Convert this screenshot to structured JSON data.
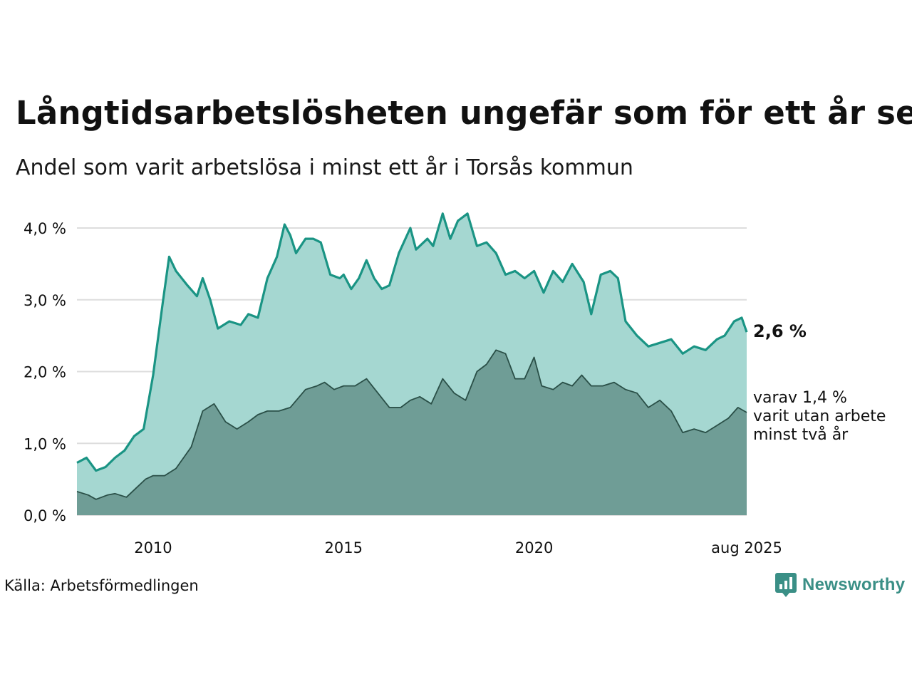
{
  "header": {
    "title": "Långtidsarbetslösheten ungefär som för ett år sen",
    "subtitle": "Andel som varit arbetslösa i minst ett år i Torsås kommun"
  },
  "footer": {
    "source": "Källa: Arbetsförmedlingen",
    "brand": "Newsworthy"
  },
  "annotations": {
    "main_end": "2,6 %",
    "sub_end_line1": "varav 1,4 %",
    "sub_end_line2": "varit utan arbete",
    "sub_end_line3": "minst två år"
  },
  "colors": {
    "main_line": "#1a9484",
    "main_fill": "#a5d7d1",
    "sub_line": "#2a4f47",
    "sub_fill": "#6f9d96",
    "grid": "#dddddd",
    "brand": "#3a8f86"
  },
  "chart_data": {
    "type": "area",
    "y_ticks": [
      "0,0 %",
      "1,0 %",
      "2,0 %",
      "3,0 %",
      "4,0 %"
    ],
    "ylim": [
      0,
      4.3
    ],
    "x_ticks": [
      "2010",
      "2015",
      "2020",
      "aug 2025"
    ],
    "x_tick_values": [
      2010.0,
      2015.0,
      2020.0,
      2025.58
    ],
    "xlim": [
      2008.0,
      2025.58
    ],
    "grid": true,
    "series": [
      {
        "key": "over_1_year",
        "points": [
          [
            2008.0,
            0.73
          ],
          [
            2008.25,
            0.8
          ],
          [
            2008.5,
            0.62
          ],
          [
            2008.75,
            0.67
          ],
          [
            2009.0,
            0.8
          ],
          [
            2009.25,
            0.9
          ],
          [
            2009.5,
            1.1
          ],
          [
            2009.75,
            1.2
          ],
          [
            2010.0,
            1.95
          ],
          [
            2010.25,
            2.95
          ],
          [
            2010.42,
            3.6
          ],
          [
            2010.6,
            3.4
          ],
          [
            2010.9,
            3.2
          ],
          [
            2011.15,
            3.05
          ],
          [
            2011.3,
            3.3
          ],
          [
            2011.5,
            3.0
          ],
          [
            2011.7,
            2.6
          ],
          [
            2012.0,
            2.7
          ],
          [
            2012.3,
            2.65
          ],
          [
            2012.5,
            2.8
          ],
          [
            2012.75,
            2.75
          ],
          [
            2013.0,
            3.3
          ],
          [
            2013.25,
            3.6
          ],
          [
            2013.45,
            4.05
          ],
          [
            2013.6,
            3.9
          ],
          [
            2013.75,
            3.65
          ],
          [
            2014.0,
            3.85
          ],
          [
            2014.2,
            3.85
          ],
          [
            2014.4,
            3.8
          ],
          [
            2014.65,
            3.35
          ],
          [
            2014.9,
            3.3
          ],
          [
            2015.0,
            3.35
          ],
          [
            2015.2,
            3.15
          ],
          [
            2015.4,
            3.3
          ],
          [
            2015.6,
            3.55
          ],
          [
            2015.8,
            3.3
          ],
          [
            2016.0,
            3.15
          ],
          [
            2016.2,
            3.2
          ],
          [
            2016.45,
            3.65
          ],
          [
            2016.75,
            4.0
          ],
          [
            2016.9,
            3.7
          ],
          [
            2017.2,
            3.85
          ],
          [
            2017.35,
            3.75
          ],
          [
            2017.6,
            4.2
          ],
          [
            2017.8,
            3.85
          ],
          [
            2018.0,
            4.1
          ],
          [
            2018.25,
            4.2
          ],
          [
            2018.5,
            3.75
          ],
          [
            2018.75,
            3.8
          ],
          [
            2019.0,
            3.65
          ],
          [
            2019.25,
            3.35
          ],
          [
            2019.5,
            3.4
          ],
          [
            2019.75,
            3.3
          ],
          [
            2020.0,
            3.4
          ],
          [
            2020.25,
            3.1
          ],
          [
            2020.5,
            3.4
          ],
          [
            2020.75,
            3.25
          ],
          [
            2021.0,
            3.5
          ],
          [
            2021.3,
            3.25
          ],
          [
            2021.5,
            2.8
          ],
          [
            2021.75,
            3.35
          ],
          [
            2022.0,
            3.4
          ],
          [
            2022.2,
            3.3
          ],
          [
            2022.4,
            2.7
          ],
          [
            2022.7,
            2.5
          ],
          [
            2023.0,
            2.35
          ],
          [
            2023.3,
            2.4
          ],
          [
            2023.6,
            2.45
          ],
          [
            2023.9,
            2.25
          ],
          [
            2024.2,
            2.35
          ],
          [
            2024.5,
            2.3
          ],
          [
            2024.8,
            2.45
          ],
          [
            2025.0,
            2.5
          ],
          [
            2025.25,
            2.7
          ],
          [
            2025.45,
            2.75
          ],
          [
            2025.58,
            2.55
          ]
        ]
      },
      {
        "key": "over_2_years",
        "points": [
          [
            2008.0,
            0.33
          ],
          [
            2008.3,
            0.28
          ],
          [
            2008.5,
            0.22
          ],
          [
            2008.8,
            0.28
          ],
          [
            2009.0,
            0.3
          ],
          [
            2009.3,
            0.25
          ],
          [
            2009.5,
            0.35
          ],
          [
            2009.8,
            0.5
          ],
          [
            2010.0,
            0.55
          ],
          [
            2010.3,
            0.55
          ],
          [
            2010.6,
            0.65
          ],
          [
            2011.0,
            0.95
          ],
          [
            2011.3,
            1.45
          ],
          [
            2011.6,
            1.55
          ],
          [
            2011.9,
            1.3
          ],
          [
            2012.2,
            1.2
          ],
          [
            2012.5,
            1.3
          ],
          [
            2012.75,
            1.4
          ],
          [
            2013.0,
            1.45
          ],
          [
            2013.3,
            1.45
          ],
          [
            2013.6,
            1.5
          ],
          [
            2014.0,
            1.75
          ],
          [
            2014.3,
            1.8
          ],
          [
            2014.5,
            1.85
          ],
          [
            2014.75,
            1.75
          ],
          [
            2015.0,
            1.8
          ],
          [
            2015.3,
            1.8
          ],
          [
            2015.6,
            1.9
          ],
          [
            2015.9,
            1.7
          ],
          [
            2016.2,
            1.5
          ],
          [
            2016.5,
            1.5
          ],
          [
            2016.75,
            1.6
          ],
          [
            2017.0,
            1.65
          ],
          [
            2017.3,
            1.55
          ],
          [
            2017.6,
            1.9
          ],
          [
            2017.9,
            1.7
          ],
          [
            2018.2,
            1.6
          ],
          [
            2018.5,
            2.0
          ],
          [
            2018.75,
            2.1
          ],
          [
            2019.0,
            2.3
          ],
          [
            2019.25,
            2.25
          ],
          [
            2019.5,
            1.9
          ],
          [
            2019.75,
            1.9
          ],
          [
            2020.0,
            2.2
          ],
          [
            2020.2,
            1.8
          ],
          [
            2020.5,
            1.75
          ],
          [
            2020.75,
            1.85
          ],
          [
            2021.0,
            1.8
          ],
          [
            2021.25,
            1.95
          ],
          [
            2021.5,
            1.8
          ],
          [
            2021.8,
            1.8
          ],
          [
            2022.1,
            1.85
          ],
          [
            2022.4,
            1.75
          ],
          [
            2022.7,
            1.7
          ],
          [
            2023.0,
            1.5
          ],
          [
            2023.3,
            1.6
          ],
          [
            2023.6,
            1.45
          ],
          [
            2023.9,
            1.15
          ],
          [
            2024.2,
            1.2
          ],
          [
            2024.5,
            1.15
          ],
          [
            2024.8,
            1.25
          ],
          [
            2025.1,
            1.35
          ],
          [
            2025.35,
            1.5
          ],
          [
            2025.58,
            1.43
          ]
        ]
      }
    ]
  }
}
